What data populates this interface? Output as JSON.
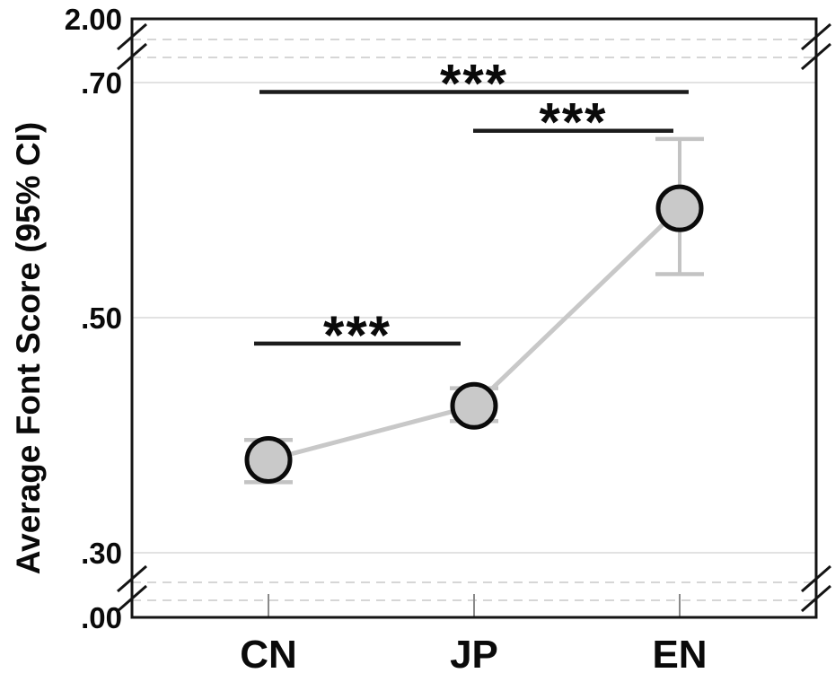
{
  "chart_data": {
    "type": "line",
    "title": "",
    "xlabel": "",
    "ylabel": "Average Font Score (95% CI)",
    "categories": [
      "CN",
      "JP",
      "EN"
    ],
    "series": [
      {
        "name": "Average Font Score",
        "means": [
          0.379,
          0.425,
          0.593
        ],
        "ci_low": [
          0.36,
          0.412,
          0.537
        ],
        "ci_high": [
          0.396,
          0.44,
          0.652
        ]
      }
    ],
    "y_axis": {
      "ticks": [
        {
          "label": "2.00",
          "value": 2.0
        },
        {
          "label": ".70",
          "value": 0.7
        },
        {
          "label": ".50",
          "value": 0.5
        },
        {
          "label": ".30",
          "value": 0.3
        },
        {
          "label": ".00",
          "value": 0.0
        }
      ],
      "linear_range": [
        0.3,
        0.7
      ],
      "breaks": [
        {
          "between": [
            0.7,
            2.0
          ]
        },
        {
          "between": [
            0.0,
            0.3
          ]
        }
      ],
      "grid": "on"
    },
    "significance": [
      {
        "from": "CN",
        "to": "EN",
        "label": "***",
        "bar_value": 0.692
      },
      {
        "from": "JP",
        "to": "EN",
        "label": "***",
        "bar_value": 0.659
      },
      {
        "from": "CN",
        "to": "JP",
        "label": "***",
        "bar_value": 0.478
      }
    ],
    "colors": {
      "marker_fill": "#c9c9c9",
      "marker_stroke": "#0b0b0b",
      "error_bar": "#c3c3c3",
      "connector": "#c8c8c8",
      "gridline_solid": "#e2e2e2",
      "gridline_dashed": "#d6d6d6",
      "significance_line": "#1c1c1c",
      "axis_frame": "#141414",
      "x_tick": "#8a8a8a",
      "text": "#0a0a0a",
      "background": "#ffffff"
    },
    "legend": "none"
  }
}
